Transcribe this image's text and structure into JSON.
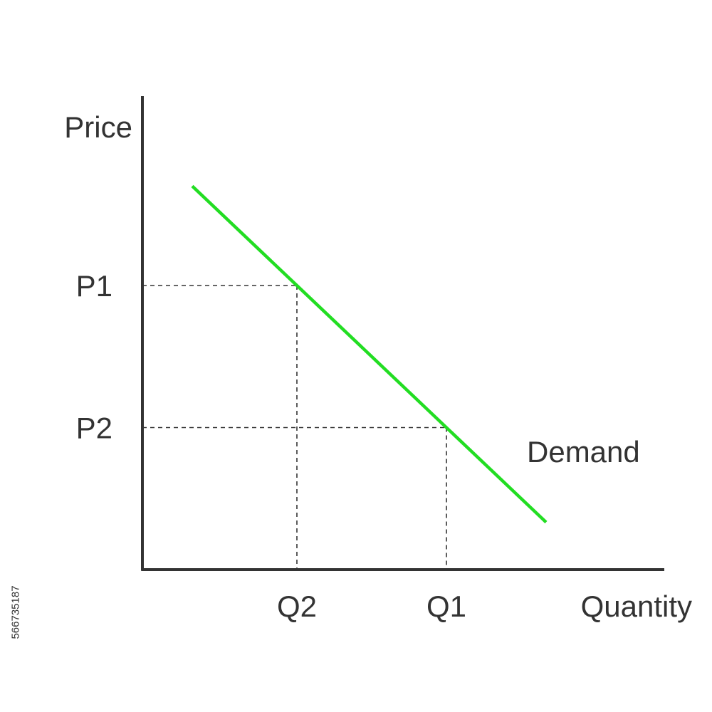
{
  "chart_data": {
    "type": "line",
    "title": "",
    "xlabel": "Quantity",
    "ylabel": "Price",
    "xlim": [
      0,
      10
    ],
    "ylim": [
      0,
      10
    ],
    "grid": false,
    "axis_ticks_numeric": false,
    "series": [
      {
        "name": "Demand",
        "x": [
          1,
          8.1
        ],
        "y": [
          8.1,
          1.0
        ],
        "color": "#22dd22"
      }
    ],
    "reference_points": [
      {
        "x_label": "Q2",
        "y_label": "P1",
        "x": 3.1,
        "y": 6.0
      },
      {
        "x_label": "Q1",
        "y_label": "P2",
        "x": 6.1,
        "y": 3.0
      }
    ],
    "colors": {
      "axis": "#333333",
      "text": "#333333",
      "guides": "#333333"
    }
  },
  "watermark": {
    "stock_id": "566735187"
  }
}
